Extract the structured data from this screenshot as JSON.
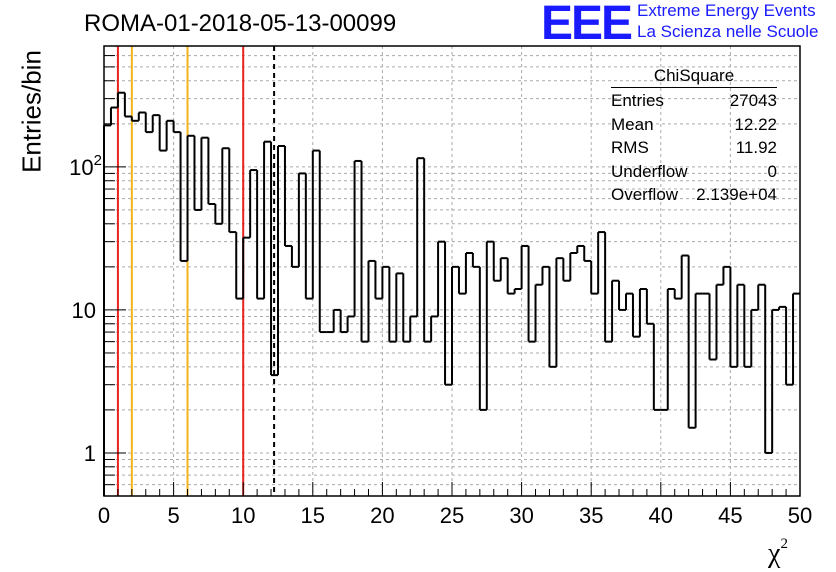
{
  "title": "ROMA-01-2018-05-13-00099",
  "logo": {
    "mark": "EEE",
    "line1": "Extreme Energy Events",
    "line2": "La Scienza nelle Scuole"
  },
  "stats_box": {
    "name": "ChiSquare",
    "rows": [
      {
        "label": "Entries",
        "value": "27043"
      },
      {
        "label": "Mean",
        "value": "12.22"
      },
      {
        "label": "RMS",
        "value": "11.92"
      },
      {
        "label": "Underflow",
        "value": "0"
      },
      {
        "label": "Overflow",
        "value": "2.139e+04"
      }
    ]
  },
  "colors": {
    "hist": "#000000",
    "red_line": "#e8221c",
    "orange_line": "#f2b419",
    "grid": "#aaaaaa"
  },
  "chart_data": {
    "type": "histogram",
    "xlabel": "χ²",
    "ylabel": "Entries/bin",
    "xlim": [
      0,
      50
    ],
    "ylim": [
      0.5,
      700
    ],
    "y_scale": "log",
    "grid": true,
    "x_ticks": [
      "0",
      "5",
      "10",
      "15",
      "20",
      "25",
      "30",
      "35",
      "40",
      "45",
      "50"
    ],
    "y_ticks": [
      {
        "value": 1,
        "label": "1"
      },
      {
        "value": 10,
        "label": "10"
      },
      {
        "value": 100,
        "label": "10²"
      }
    ],
    "bin_width": 0.5,
    "values": [
      195,
      260,
      330,
      225,
      210,
      240,
      175,
      230,
      130,
      210,
      175,
      22,
      165,
      50,
      160,
      55,
      40,
      135,
      35,
      12,
      32,
      95,
      12,
      150,
      3.5,
      140,
      28,
      20,
      90,
      12,
      130,
      7,
      7,
      10,
      7,
      9,
      110,
      6,
      22,
      12,
      20,
      6,
      18,
      6,
      9,
      115,
      6,
      9,
      30,
      3,
      20,
      13,
      25,
      20,
      2,
      30,
      16,
      23,
      13,
      14,
      28,
      6,
      15,
      20,
      4,
      23,
      16,
      25,
      28,
      22,
      13,
      35,
      6,
      16,
      10,
      13,
      6.5,
      14,
      8,
      2,
      2,
      14,
      12,
      24,
      1.5,
      13,
      13,
      4.5,
      15,
      20,
      4,
      15,
      4,
      10,
      15,
      1,
      10,
      10.5,
      3,
      13
    ],
    "vertical_lines": [
      {
        "x": 1,
        "color": "red",
        "style": "solid"
      },
      {
        "x": 2,
        "color": "orange",
        "style": "solid"
      },
      {
        "x": 6,
        "color": "orange",
        "style": "solid"
      },
      {
        "x": 10,
        "color": "red",
        "style": "solid"
      },
      {
        "x": 12.22,
        "color": "black",
        "style": "dashed"
      }
    ]
  }
}
